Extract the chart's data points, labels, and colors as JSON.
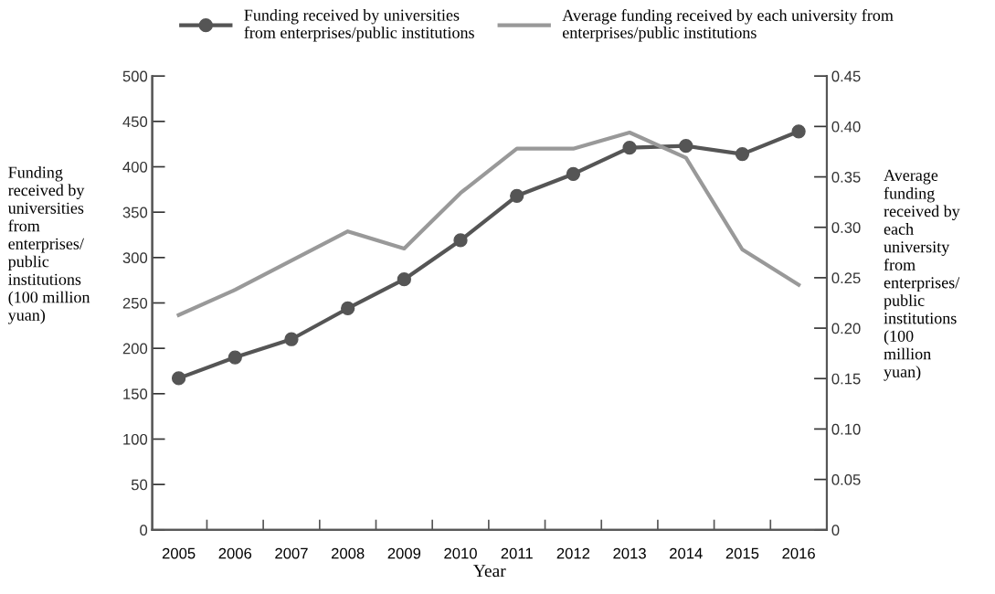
{
  "chart_data": {
    "type": "line",
    "xlabel": "Year",
    "ylabel": "Funding\nreceived by\nuniversities\nfrom\nenterprises/\npublic\ninstitutions\n(100 million\nyuan)",
    "y2label": "Average\nfunding\nreceived by\neach\nuniversity\nfrom\nenterprises/\npublic\ninstitutions\n(100\nmillion\nyuan)",
    "categories": [
      "2005",
      "2006",
      "2007",
      "2008",
      "2009",
      "2010",
      "2011",
      "2012",
      "2013",
      "2014",
      "2015",
      "2016"
    ],
    "series": [
      {
        "name": "Funding received by universities\nfrom enterprises/public institutions",
        "color": "#555555",
        "marker": "circle",
        "values": [
          167,
          190,
          210,
          244,
          276,
          319,
          368,
          392,
          421,
          423,
          414,
          439
        ]
      },
      {
        "name": "Average funding received by each university from\nenterprises/public institutions",
        "color": "#999999",
        "axis": "y2",
        "marker": "none",
        "values": [
          0.213,
          0.238,
          0.267,
          0.296,
          0.279,
          0.334,
          0.378,
          0.378,
          0.394,
          0.369,
          0.278,
          0.243
        ]
      }
    ],
    "ylim": [
      0,
      500
    ],
    "yticks": [
      0,
      50,
      100,
      150,
      200,
      250,
      300,
      350,
      400,
      450,
      500
    ],
    "y2lim": [
      0,
      0.45
    ],
    "y2ticks": [
      0,
      {
        "value": 0.05,
        "label": "0.05"
      },
      {
        "value": 0.1,
        "label": "0.10"
      },
      {
        "value": 0.15,
        "label": "0.15"
      },
      {
        "value": 0.2,
        "label": "0.20"
      },
      {
        "value": 0.25,
        "label": "0.25"
      },
      {
        "value": 0.3,
        "label": "0.30"
      },
      {
        "value": 0.35,
        "label": "0.35"
      },
      {
        "value": 0.4,
        "label": "0.40"
      },
      {
        "value": 0.45,
        "label": "0.45"
      }
    ],
    "grid": false,
    "legend": "top",
    "line_style": "solid"
  }
}
